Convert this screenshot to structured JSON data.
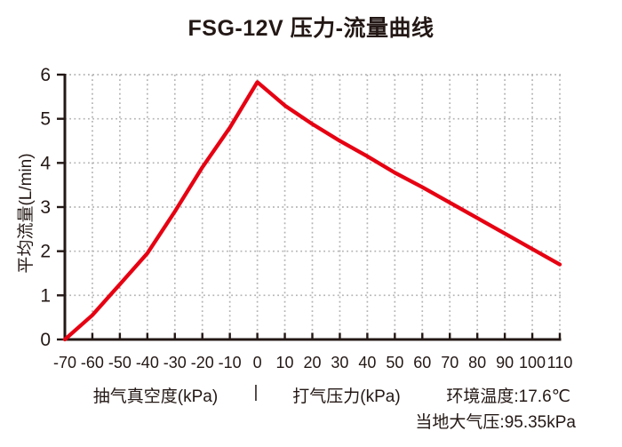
{
  "title": "FSG-12V 压力-流量曲线",
  "chart_data": {
    "type": "line",
    "x": [
      -70,
      -60,
      -50,
      -40,
      -30,
      -20,
      -10,
      0,
      10,
      20,
      30,
      40,
      50,
      60,
      70,
      80,
      90,
      100,
      110
    ],
    "y": [
      0,
      0.55,
      1.25,
      1.95,
      2.9,
      3.9,
      4.8,
      5.83,
      5.3,
      4.88,
      4.5,
      4.15,
      3.78,
      3.45,
      3.1,
      2.75,
      2.4,
      2.05,
      1.7
    ],
    "xlim": [
      -70,
      110
    ],
    "ylim": [
      0,
      6
    ],
    "xticks": [
      -70,
      -60,
      -50,
      -40,
      -30,
      -20,
      -10,
      0,
      10,
      20,
      30,
      40,
      50,
      60,
      70,
      80,
      90,
      100,
      110
    ],
    "yticks": [
      0,
      1,
      2,
      3,
      4,
      5,
      6
    ],
    "ylabel": "平均流量(L/min)",
    "xlabel_left": "抽气真空度(kPa)",
    "xlabel_separator": "|",
    "xlabel_right": "打气压力(kPa)",
    "grid": "dotted",
    "legend": "none",
    "line_color": "#e60012",
    "axis_color": "#231815",
    "grid_color": "#b3b3b4"
  },
  "footer": {
    "ambient_temperature": "环境温度:17.6℃",
    "local_pressure": "当地大气压:95.35kPa"
  }
}
